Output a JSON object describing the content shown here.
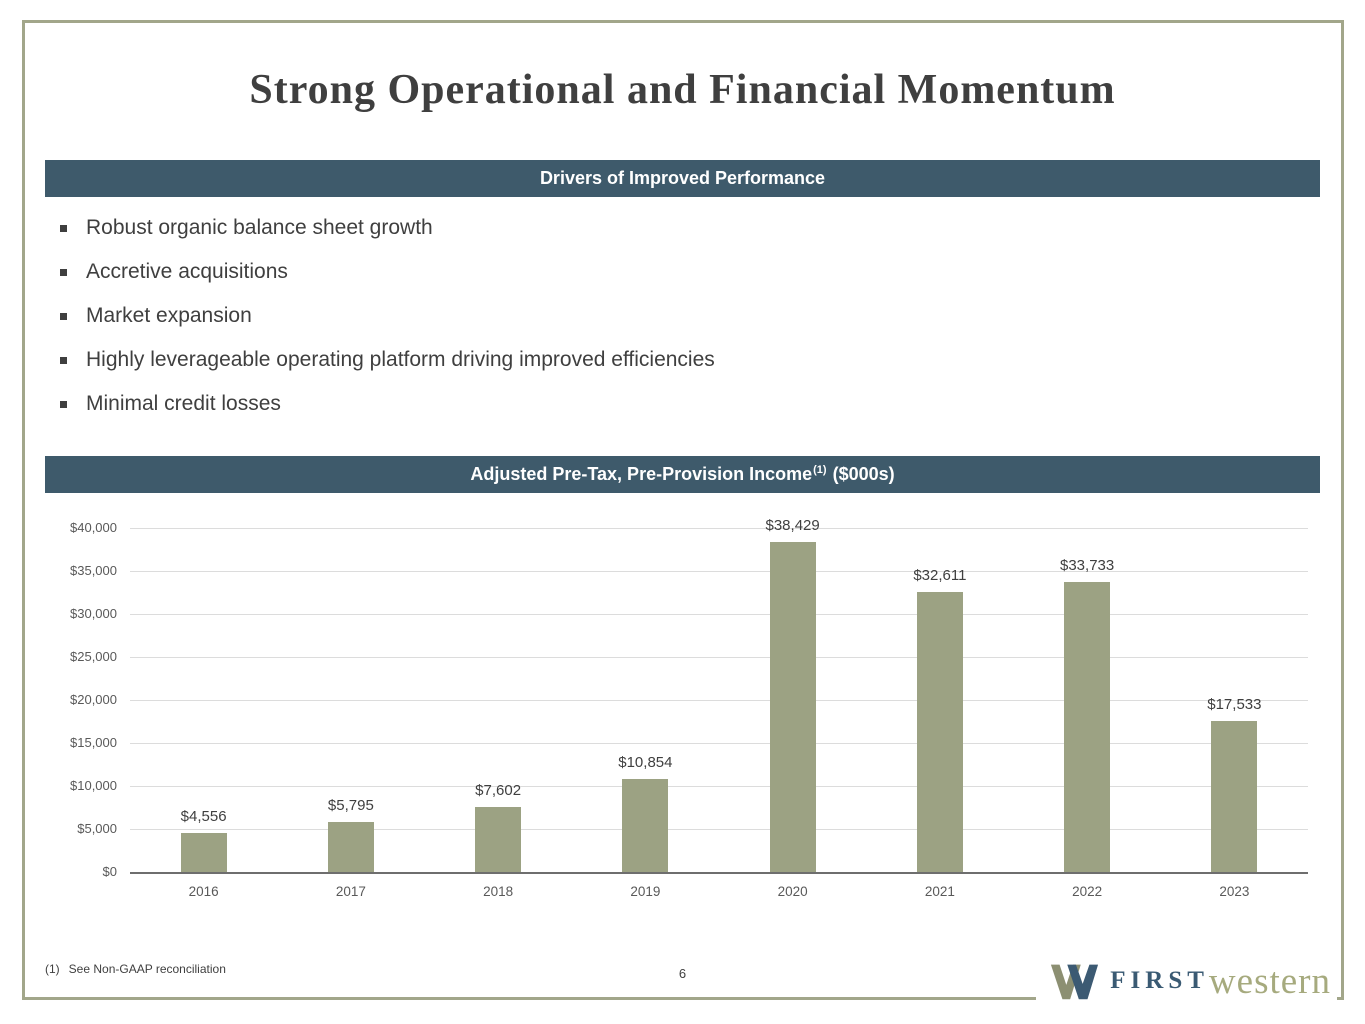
{
  "slide": {
    "title": "Strong Operational and Financial Momentum",
    "page_number": "6",
    "footnote_marker": "(1)",
    "footnote_text": "See Non-GAAP reconciliation"
  },
  "drivers": {
    "header": "Drivers of Improved Performance",
    "bullets": [
      "Robust organic balance sheet growth",
      "Accretive acquisitions",
      "Market expansion",
      "Highly leverageable operating platform driving improved efficiencies",
      "Minimal credit losses"
    ]
  },
  "chart_section": {
    "header_text": "Adjusted Pre-Tax, Pre-Provision Income",
    "header_superscript": "(1)",
    "header_suffix": " ($000s)"
  },
  "chart_data": {
    "type": "bar",
    "title": "Adjusted Pre-Tax, Pre-Provision Income ($000s)",
    "categories": [
      "2016",
      "2017",
      "2018",
      "2019",
      "2020",
      "2021",
      "2022",
      "2023"
    ],
    "values": [
      4556,
      5795,
      7602,
      10854,
      38429,
      32611,
      33733,
      17533
    ],
    "value_labels": [
      "$4,556",
      "$5,795",
      "$7,602",
      "$10,854",
      "$38,429",
      "$32,611",
      "$33,733",
      "$17,533"
    ],
    "xlabel": "",
    "ylabel": "",
    "ylim": [
      0,
      40000
    ],
    "ytick_step": 5000,
    "ytick_labels": [
      "$0",
      "$5,000",
      "$10,000",
      "$15,000",
      "$20,000",
      "$25,000",
      "$30,000",
      "$35,000",
      "$40,000"
    ],
    "grid": true,
    "legend": "none",
    "bar_color": "#9CA283"
  },
  "colors": {
    "section_bar": "#3E5A6B",
    "bar_fill": "#9CA283",
    "frame_border": "#A2A68A",
    "title_text": "#3F3F3F"
  },
  "logo": {
    "first": "FIRST",
    "western": "western"
  }
}
